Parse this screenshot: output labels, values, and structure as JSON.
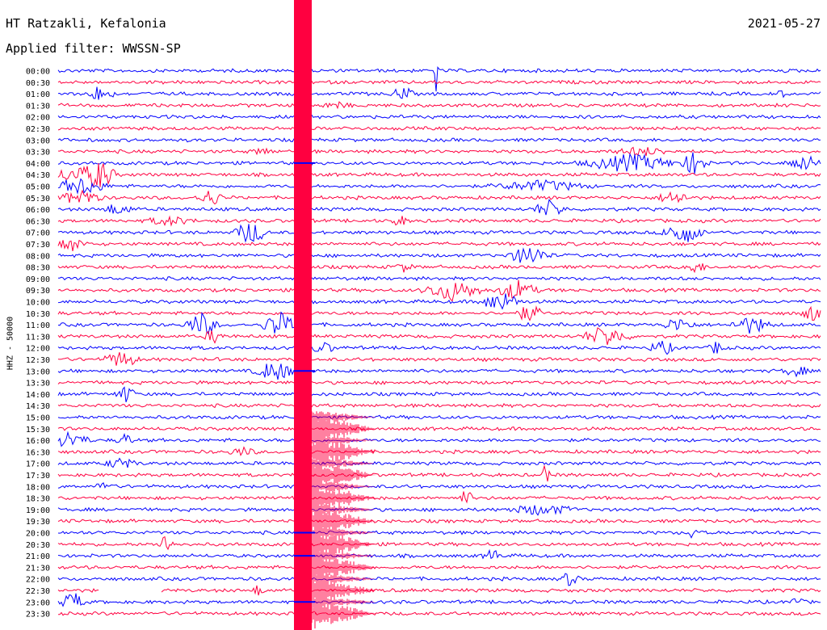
{
  "header": {
    "station": "HT Ratzakli, Kefalonia",
    "filter_label": "Applied filter: WWSSN-SP",
    "date": "2021-05-27"
  },
  "colors": {
    "even_rows": "#0000ff",
    "odd_rows": "#ff0040",
    "background": "#ffffff"
  },
  "chart_data": {
    "type": "line",
    "title": "HT Ratzakli, Kefalonia",
    "subtitle": "Applied filter: WWSSN-SP",
    "ylabel": "HHZ - 50000",
    "xlabel": "",
    "rows": [
      "00:00",
      "00:30",
      "01:00",
      "01:30",
      "02:00",
      "02:30",
      "03:00",
      "03:30",
      "04:00",
      "04:30",
      "05:00",
      "05:30",
      "06:00",
      "06:30",
      "07:00",
      "07:30",
      "08:00",
      "08:30",
      "09:00",
      "09:30",
      "10:00",
      "10:30",
      "11:00",
      "11:30",
      "12:00",
      "12:30",
      "13:00",
      "13:30",
      "14:00",
      "14:30",
      "15:00",
      "15:30",
      "16:00",
      "16:30",
      "17:00",
      "17:30",
      "18:00",
      "18:30",
      "19:00",
      "19:30",
      "20:00",
      "20:30",
      "21:00",
      "21:30",
      "22:00",
      "22:30",
      "23:00",
      "23:30"
    ],
    "row_minutes": 30,
    "row_colors": [
      "blue",
      "red"
    ],
    "major_event": {
      "approx_row_start": "00:00",
      "description_minute_offset": 9.5
    },
    "grid": false,
    "legend": "none"
  }
}
